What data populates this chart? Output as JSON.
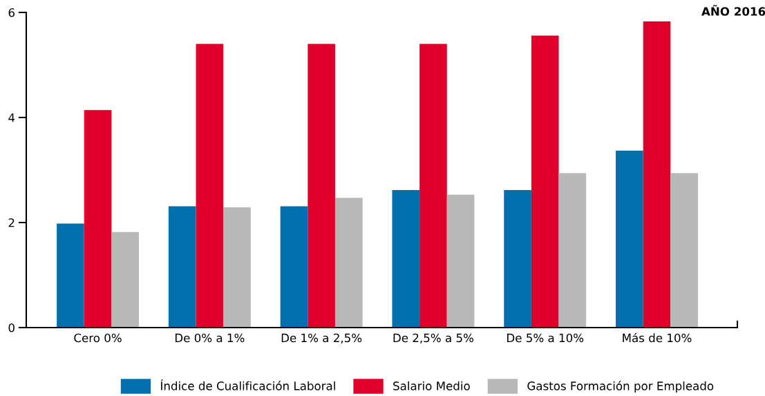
{
  "chart_data": {
    "type": "bar",
    "title": "AÑO 2016",
    "categories": [
      "Cero 0%",
      "De 0% a 1%",
      "De 1% a 2,5%",
      "De 2,5% a 5%",
      "De 5% a 10%",
      "Más de 10%"
    ],
    "series": [
      {
        "name": "Índice de Cualificación Laboral",
        "color": "#006fad",
        "values": [
          1.98,
          2.31,
          2.31,
          2.62,
          2.62,
          3.37
        ]
      },
      {
        "name": "Salario Medio",
        "color": "#e0002a",
        "values": [
          4.14,
          5.4,
          5.4,
          5.4,
          5.56,
          5.83
        ]
      },
      {
        "name": "Gastos Formación por Empleado",
        "color": "#b8b8b8",
        "values": [
          1.82,
          2.29,
          2.47,
          2.53,
          2.94,
          2.94
        ]
      }
    ],
    "ylim": [
      0,
      6
    ],
    "yticks": [
      0,
      2,
      4,
      6
    ],
    "grid": false,
    "legend": "bottom"
  }
}
